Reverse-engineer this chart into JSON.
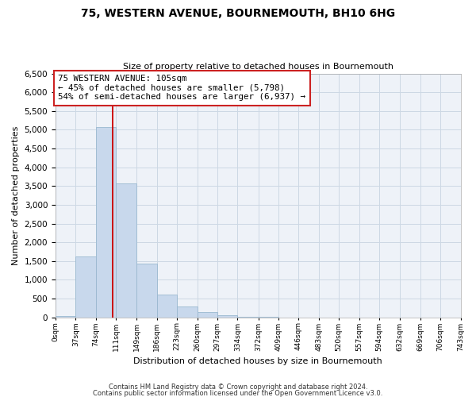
{
  "title": "75, WESTERN AVENUE, BOURNEMOUTH, BH10 6HG",
  "subtitle": "Size of property relative to detached houses in Bournemouth",
  "xlabel": "Distribution of detached houses by size in Bournemouth",
  "ylabel": "Number of detached properties",
  "bar_color": "#c8d8ec",
  "bar_edge_color": "#9ab8d0",
  "bin_edges": [
    0,
    37,
    74,
    111,
    149,
    186,
    223,
    260,
    297,
    334,
    372,
    409,
    446,
    483,
    520,
    557,
    594,
    632,
    669,
    706,
    743
  ],
  "bar_heights": [
    30,
    1620,
    5080,
    3580,
    1430,
    610,
    300,
    150,
    60,
    15,
    5,
    0,
    0,
    0,
    0,
    0,
    0,
    0,
    0,
    0
  ],
  "property_line_x": 105,
  "property_line_color": "#cc0000",
  "ylim": [
    0,
    6500
  ],
  "yticks": [
    0,
    500,
    1000,
    1500,
    2000,
    2500,
    3000,
    3500,
    4000,
    4500,
    5000,
    5500,
    6000,
    6500
  ],
  "annotation_line1": "75 WESTERN AVENUE: 105sqm",
  "annotation_line2": "← 45% of detached houses are smaller (5,798)",
  "annotation_line3": "54% of semi-detached houses are larger (6,937) →",
  "footnote1": "Contains HM Land Registry data © Crown copyright and database right 2024.",
  "footnote2": "Contains public sector information licensed under the Open Government Licence v3.0.",
  "tick_labels": [
    "0sqm",
    "37sqm",
    "74sqm",
    "111sqm",
    "149sqm",
    "186sqm",
    "223sqm",
    "260sqm",
    "297sqm",
    "334sqm",
    "372sqm",
    "409sqm",
    "446sqm",
    "483sqm",
    "520sqm",
    "557sqm",
    "594sqm",
    "632sqm",
    "669sqm",
    "706sqm",
    "743sqm"
  ],
  "background_color": "#ffffff",
  "grid_color": "#ccd8e4",
  "plot_bg_color": "#eef2f8"
}
